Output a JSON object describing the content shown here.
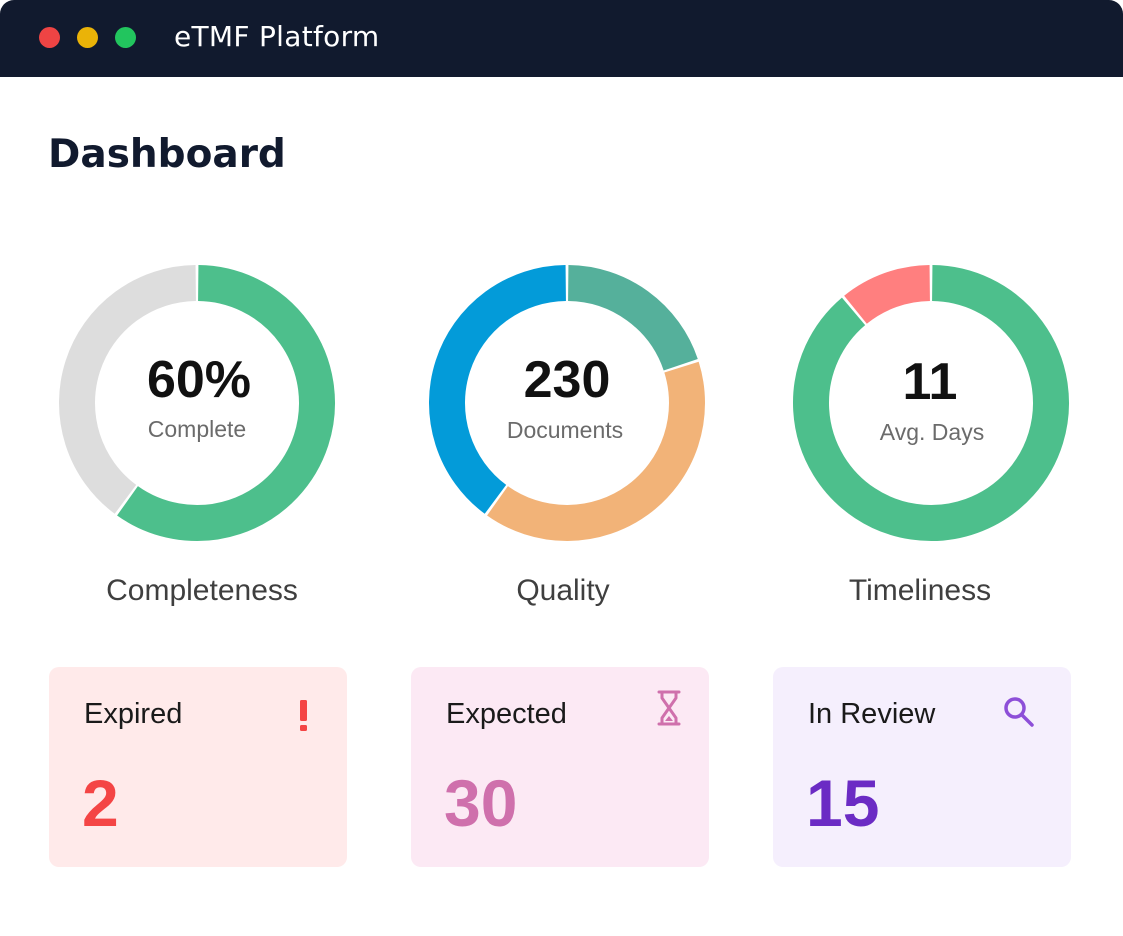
{
  "window": {
    "title": "eTMF Platform",
    "controls": {
      "close_color": "#ee4444",
      "minimize_color": "#eab308",
      "maximize_color": "#22c55e"
    }
  },
  "page": {
    "title": "Dashboard"
  },
  "charts": {
    "completeness": {
      "center_value": "60%",
      "center_caption": "Complete",
      "label": "Completeness",
      "segments": [
        {
          "value": 60,
          "color": "#4dbf8c"
        },
        {
          "value": 40,
          "color": "#dddddd"
        }
      ]
    },
    "quality": {
      "center_value": "230",
      "center_caption": "Documents",
      "label": "Quality",
      "segments": [
        {
          "value": 20,
          "color": "#55b09b"
        },
        {
          "value": 40,
          "color": "#f2b378"
        },
        {
          "value": 40,
          "color": "#039bd9"
        }
      ]
    },
    "timeliness": {
      "center_value": "11",
      "center_caption": "Avg. Days",
      "label": "Timeliness",
      "segments": [
        {
          "value": 89,
          "color": "#4dbf8c"
        },
        {
          "value": 11,
          "color": "#ff7f7f"
        }
      ]
    }
  },
  "cards": [
    {
      "label": "Expired",
      "value": "2",
      "icon": "exclamation-icon",
      "bg": "#ffeaea",
      "value_color": "#f44545",
      "icon_color": "#f44545"
    },
    {
      "label": "Expected",
      "value": "30",
      "icon": "hourglass-icon",
      "bg": "#fce9f4",
      "value_color": "#cf70ac",
      "icon_color": "#cf70ac"
    },
    {
      "label": "In Review",
      "value": "15",
      "icon": "search-icon",
      "bg": "#f5effd",
      "value_color": "#6b2bc4",
      "icon_color": "#8d4fd8"
    }
  ]
}
